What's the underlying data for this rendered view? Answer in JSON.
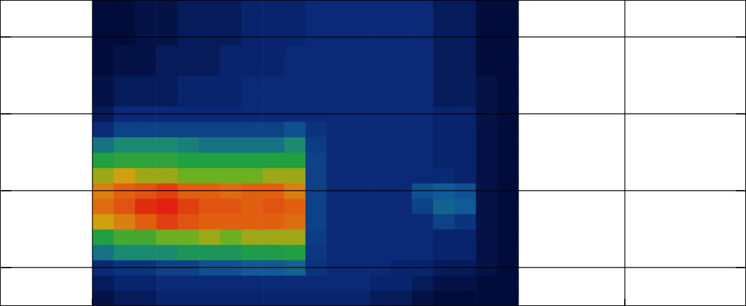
{
  "chart_data": {
    "type": "heatmap",
    "x": [
      0.02,
      0.06,
      0.1,
      0.14,
      0.18,
      0.22,
      0.26,
      0.3,
      0.34,
      0.38,
      0.42,
      0.46,
      0.5,
      0.54,
      0.58,
      0.62,
      0.66,
      0.7,
      0.74,
      0.78
    ],
    "y": [
      0.1,
      0.3,
      0.5,
      0.7,
      0.9,
      1.1,
      1.3,
      1.5,
      1.7,
      1.9,
      2.1,
      2.3,
      2.5,
      2.7,
      2.9,
      3.1,
      3.3,
      3.5,
      3.7,
      3.9
    ],
    "values": [
      [
        1.2,
        1.5,
        1.5,
        1.8,
        1.8,
        1.8,
        1.8,
        1.8,
        1.8,
        1.8,
        1.8,
        1.8,
        1.8,
        1.5,
        1.5,
        1.2,
        1,
        1,
        1,
        1
      ],
      [
        1.5,
        1.8,
        1.8,
        2,
        2,
        2,
        2,
        2,
        2,
        2,
        2,
        2,
        2,
        1.8,
        1.8,
        1.5,
        1.2,
        1.2,
        1,
        1
      ],
      [
        2,
        2.2,
        2.2,
        2.5,
        2.5,
        2.8,
        2.8,
        3,
        3,
        3.2,
        2.2,
        2,
        2,
        2,
        1.8,
        1.8,
        1.5,
        1.5,
        1.2,
        1
      ],
      [
        3.5,
        4,
        4,
        4,
        4.5,
        4.5,
        4.5,
        4.8,
        4.8,
        5,
        2.3,
        2,
        2,
        2,
        2,
        2,
        1.8,
        1.8,
        1.2,
        1
      ],
      [
        5,
        5.5,
        5.5,
        6,
        6,
        6.5,
        6,
        6.5,
        6.5,
        6.5,
        2.4,
        2,
        2,
        2,
        2,
        2,
        1.8,
        1.8,
        1.2,
        1
      ],
      [
        7,
        7.5,
        8,
        8.5,
        8.2,
        8,
        8,
        8,
        8,
        7.8,
        2.5,
        2,
        2,
        2,
        2,
        2,
        2.5,
        2.2,
        1.2,
        1
      ],
      [
        7.8,
        8.2,
        8.8,
        9,
        8.5,
        8.2,
        8.2,
        8,
        8.2,
        8,
        2.5,
        2,
        2,
        2,
        2,
        2.5,
        3.2,
        3,
        1.2,
        1
      ],
      [
        7.5,
        8,
        8.2,
        8.5,
        8,
        8,
        7.8,
        8,
        8,
        7.5,
        2.5,
        2,
        2,
        2,
        2,
        2.8,
        3,
        2.8,
        1.2,
        1
      ],
      [
        6.5,
        7,
        6.5,
        6.5,
        6,
        6,
        6,
        6,
        6.5,
        6.5,
        2.5,
        2,
        2,
        2,
        2,
        2,
        2,
        1.8,
        1.2,
        1
      ],
      [
        5,
        5.2,
        5.2,
        5.2,
        5,
        5,
        5,
        5,
        5,
        5,
        2.5,
        2,
        2,
        2,
        2,
        2,
        1.8,
        1.8,
        1.2,
        1
      ],
      [
        3.5,
        4,
        4,
        4,
        3.8,
        3.5,
        3.5,
        3.5,
        3.5,
        4,
        2.4,
        2,
        2,
        2,
        2,
        2,
        1.8,
        1.8,
        1.2,
        1
      ],
      [
        2,
        2.5,
        2.5,
        2.5,
        2.5,
        2.5,
        2.5,
        2.5,
        2.5,
        2.8,
        2.2,
        2,
        2,
        2,
        2,
        2,
        1.8,
        1.8,
        1.2,
        1
      ],
      [
        1.5,
        2,
        2,
        2,
        2,
        2,
        2,
        2,
        2,
        2,
        2,
        2,
        2,
        2,
        2,
        2,
        1.8,
        1.8,
        1.2,
        1
      ],
      [
        1.2,
        1.5,
        1.5,
        1.5,
        1.8,
        1.8,
        1.8,
        2,
        2,
        2,
        2,
        2,
        2,
        2,
        2,
        2,
        1.5,
        1.5,
        1.2,
        1
      ],
      [
        1.2,
        1.5,
        1.5,
        1.5,
        1.8,
        1.8,
        1.8,
        2,
        2,
        2,
        2,
        2,
        2,
        2,
        2,
        2,
        1.5,
        1.5,
        1.2,
        1
      ],
      [
        1,
        1.2,
        1.2,
        1.5,
        1.5,
        1.5,
        1.8,
        1.8,
        1.8,
        2,
        2,
        2,
        2,
        2,
        2,
        2,
        1.5,
        1.5,
        1,
        1
      ],
      [
        1,
        1.2,
        1.2,
        1.5,
        1.5,
        1.5,
        1.8,
        1.8,
        1.8,
        2,
        2,
        2,
        2,
        2,
        2,
        2,
        1.5,
        1.5,
        1,
        1
      ],
      [
        1,
        1,
        1.2,
        1.2,
        1.5,
        1.5,
        1.5,
        1.8,
        1.8,
        1.8,
        2,
        2,
        2,
        2,
        2,
        2,
        1.5,
        1.5,
        1,
        1
      ],
      [
        1,
        1,
        1.2,
        1.2,
        1.5,
        1.5,
        1.5,
        1.8,
        1.8,
        1.8,
        2,
        2,
        2,
        2,
        2,
        2,
        1.5,
        1.5,
        1,
        1
      ],
      [
        1,
        1,
        1.2,
        1.2,
        1.5,
        1.5,
        1.5,
        1.8,
        1.8,
        1.8,
        2,
        2,
        2,
        2,
        2,
        2,
        1.5,
        1.5,
        1,
        1
      ]
    ],
    "zlim": [
      0,
      10
    ],
    "xlim": [
      -0.1737,
      1.2276
    ],
    "ylim": [
      0,
      3.98
    ],
    "xticks": [
      0,
      1
    ],
    "yticks": [
      0.5,
      1.5,
      2.5,
      3.5
    ],
    "grid": true,
    "tick_labels": false
  }
}
